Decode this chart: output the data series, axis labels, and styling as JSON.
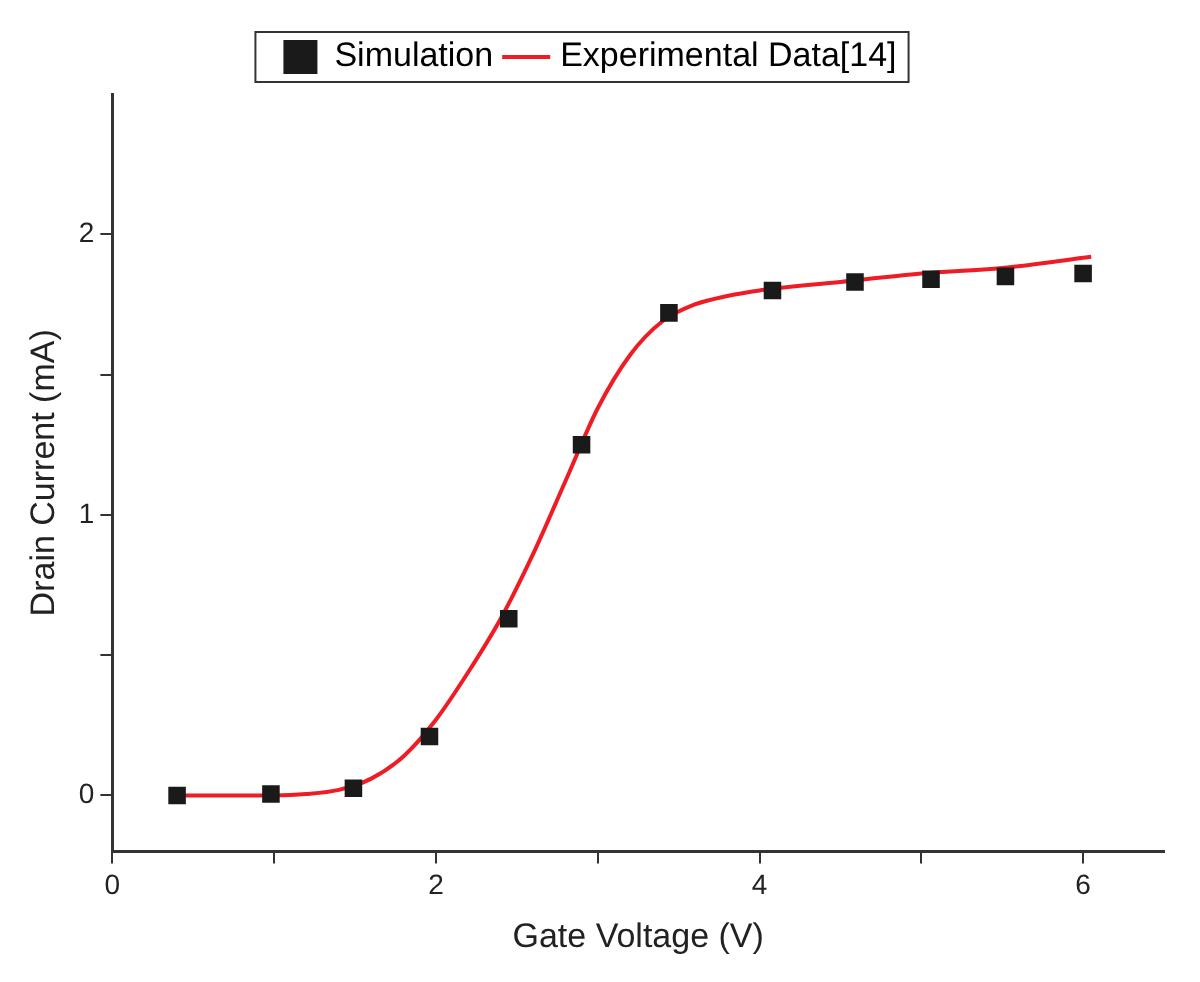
{
  "chart_data": {
    "type": "scatter",
    "xlabel": "Gate Voltage (V)",
    "ylabel": "Drain Current (mA)",
    "xlim": [
      0,
      6.5
    ],
    "ylim": [
      -0.2,
      2.5
    ],
    "xticks": [
      0,
      {
        "value": 1,
        "label": null
      },
      2,
      {
        "value": 3,
        "label": null
      },
      4,
      {
        "value": 5,
        "label": null
      },
      6
    ],
    "yticks": [
      0,
      {
        "value": 0.5,
        "label": null
      },
      1,
      {
        "value": 1.5,
        "label": null
      },
      2
    ],
    "grid": false,
    "legend": "top",
    "marker": "square",
    "series": [
      {
        "name": "Simulation",
        "type": "scatter",
        "color": "#1a1a1a",
        "x": [
          0.4,
          0.98,
          1.49,
          1.96,
          2.45,
          2.9,
          3.44,
          4.08,
          4.59,
          5.06,
          5.52,
          6.0
        ],
        "values": [
          0,
          0.005,
          0.026,
          0.21,
          0.63,
          1.25,
          1.72,
          1.8,
          1.83,
          1.84,
          1.85,
          1.86
        ]
      },
      {
        "name": "Experimental Data[14]",
        "type": "line",
        "marker": "none",
        "color": "#ee1c24",
        "x": [
          0.4,
          1.0,
          1.2,
          1.4,
          1.6,
          1.8,
          2.0,
          2.2,
          2.4,
          2.6,
          2.8,
          3.0,
          3.2,
          3.4,
          3.6,
          3.8,
          4.0,
          4.5,
          5.0,
          5.5,
          6.05
        ],
        "values": [
          0,
          0,
          0.005,
          0.02,
          0.06,
          0.14,
          0.27,
          0.44,
          0.63,
          0.86,
          1.12,
          1.38,
          1.57,
          1.69,
          1.75,
          1.78,
          1.8,
          1.83,
          1.86,
          1.88,
          1.92
        ]
      }
    ]
  }
}
